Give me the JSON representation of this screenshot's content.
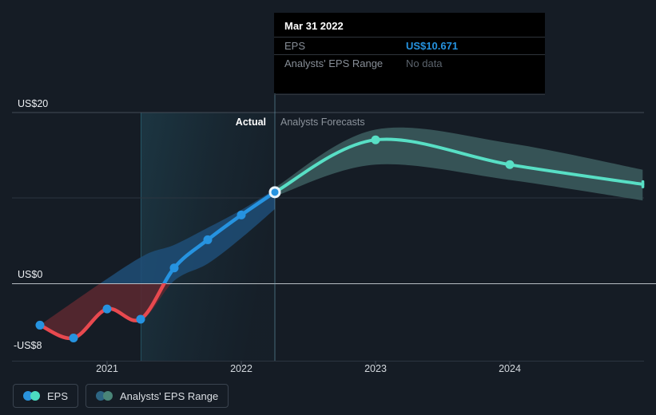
{
  "colors": {
    "background": "#151c25",
    "tooltip_bg": "#000000",
    "accent_blue": "#2693e0",
    "accent_teal": "#58dfc5",
    "accent_red": "#e8494f",
    "band_blue": "#1e4d77",
    "band_red": "#5a2830",
    "band_teal": "#3a585a",
    "grid": "#434c57",
    "grid_faint": "#2c3540",
    "zero_line": "#c9ced4",
    "divider": "#6fa7bd",
    "highlight_tint": "#40bad8"
  },
  "tooltip": {
    "title": "Mar 31 2022",
    "rows": [
      {
        "label": "EPS",
        "value": "US$10.671"
      },
      {
        "label": "Analysts' EPS Range",
        "value": "No data"
      }
    ]
  },
  "axes": {
    "y": [
      {
        "label": "US$20",
        "value": 20
      },
      {
        "label": "US$0",
        "value": 0
      },
      {
        "label": "-US$8",
        "value": -8
      }
    ],
    "x": [
      {
        "label": "2021",
        "t": 2021
      },
      {
        "label": "2022",
        "t": 2022
      },
      {
        "label": "2023",
        "t": 2023
      },
      {
        "label": "2024",
        "t": 2024
      }
    ]
  },
  "phase": {
    "actual": "Actual",
    "forecast": "Analysts Forecasts"
  },
  "legend": [
    {
      "label": "EPS",
      "c1": "#2a93dc",
      "c2": "#4cdcc1"
    },
    {
      "label": "Analysts' EPS Range",
      "c1": "#2d6583",
      "c2": "#4a8578"
    }
  ],
  "chart_data": {
    "type": "line",
    "title": "EPS actual vs analysts forecast",
    "unit": "US$",
    "ylim": [
      -9.2,
      22
    ],
    "xlim": [
      2020.32,
      2025.05
    ],
    "grid_values": [
      20,
      10,
      0
    ],
    "legend_position": "bottom-left",
    "series": [
      {
        "name": "EPS",
        "segment": "actual",
        "style": "line-with-dots",
        "points": [
          {
            "date": "Jun 30 2020",
            "t": 2020.5,
            "value": -4.9
          },
          {
            "date": "Sep 30 2020",
            "t": 2020.75,
            "value": -6.4
          },
          {
            "date": "Dec 31 2020",
            "t": 2021.0,
            "value": -3.0
          },
          {
            "date": "Mar 31 2021",
            "t": 2021.25,
            "value": -4.2
          },
          {
            "date": "Jun 30 2021",
            "t": 2021.5,
            "value": 1.8
          },
          {
            "date": "Sep 30 2021",
            "t": 2021.75,
            "value": 5.1
          },
          {
            "date": "Dec 31 2021",
            "t": 2022.0,
            "value": 8.0
          },
          {
            "date": "Mar 31 2022",
            "t": 2022.25,
            "value": 10.671,
            "selected": true
          }
        ]
      },
      {
        "name": "EPS (analysts forecast)",
        "segment": "forecast",
        "style": "line-with-dots",
        "points": [
          {
            "date": "Mar 31 2022",
            "t": 2022.25,
            "value": 10.671
          },
          {
            "date": "Dec 31 2022",
            "t": 2023.0,
            "value": 16.8
          },
          {
            "date": "Dec 31 2023",
            "t": 2024.0,
            "value": 13.9
          },
          {
            "date": "Dec 31 2024",
            "t": 2024.99,
            "value": 11.6
          }
        ]
      }
    ],
    "bands": [
      {
        "name": "actual-trend-band",
        "upper": [
          [
            2020.5,
            -4.9
          ],
          [
            2020.95,
            0.0
          ],
          [
            2021.28,
            3.3
          ],
          [
            2021.5,
            4.5
          ],
          [
            2021.75,
            6.5
          ],
          [
            2022.0,
            8.6
          ],
          [
            2022.25,
            11.0
          ]
        ],
        "lower": [
          [
            2020.5,
            -4.9
          ],
          [
            2020.75,
            -6.4
          ],
          [
            2021.0,
            -3.2
          ],
          [
            2021.25,
            -4.4
          ],
          [
            2021.5,
            0.3
          ],
          [
            2021.75,
            2.3
          ],
          [
            2022.0,
            5.3
          ],
          [
            2022.25,
            8.7
          ]
        ]
      },
      {
        "name": "analysts-eps-range",
        "upper": [
          [
            2022.25,
            11.2
          ],
          [
            2023.0,
            18.0
          ],
          [
            2024.0,
            16.4
          ],
          [
            2024.99,
            13.3
          ]
        ],
        "lower": [
          [
            2022.25,
            10.2
          ],
          [
            2023.0,
            13.9
          ],
          [
            2024.0,
            12.1
          ],
          [
            2024.99,
            9.7
          ]
        ]
      }
    ],
    "annotations": {
      "divider_t": 2022.25,
      "highlight_region": [
        2021.25,
        2022.25
      ],
      "selected_point": {
        "date": "Mar 31 2022",
        "value": 10.671
      }
    }
  }
}
